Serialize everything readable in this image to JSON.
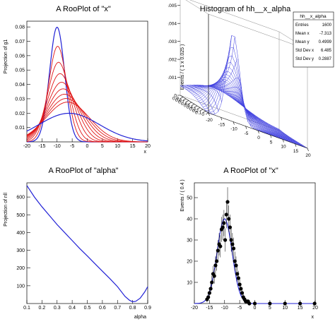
{
  "pads": [
    {
      "title": "A RooPlot of \"x\"",
      "xlabel": "x",
      "ylabel": "Projection of g1"
    },
    {
      "title": "Histogram of hh__x_alpha",
      "zlabel": "Events / ( 1 x 0.025 )"
    },
    {
      "title": "A RooPlot of \"alpha\"",
      "xlabel": "alpha",
      "ylabel": "Projection of nll"
    },
    {
      "title": "A RooPlot of \"x\"",
      "xlabel": "x",
      "ylabel": "Events / ( 0.4 )"
    }
  ],
  "stats": {
    "title": "hh__x_alpha",
    "rows": [
      {
        "label": "Entries",
        "value": "1600"
      },
      {
        "label": "Mean x",
        "value": "-7.313"
      },
      {
        "label": "Mean y",
        "value": "0.4999"
      },
      {
        "label": "Std Dev x",
        "value": "6.485"
      },
      {
        "label": "Std Dev y",
        "value": "0.2887"
      }
    ]
  },
  "chart_data": [
    {
      "type": "line",
      "title": "A RooPlot of \"x\"",
      "xlabel": "x",
      "ylabel": "Projection of g1",
      "xlim": [
        -20,
        20
      ],
      "ylim": [
        0,
        0.084
      ],
      "xticks": [
        -20,
        -15,
        -10,
        -5,
        0,
        5,
        10,
        15,
        20
      ],
      "yticks": [
        0.01,
        0.02,
        0.03,
        0.04,
        0.05,
        0.06,
        0.07,
        0.08
      ],
      "colors": {
        "blue": "#2121d6",
        "red": "#e01414"
      },
      "series": [
        {
          "color": "blue",
          "mean": -10,
          "sigma": 2.5,
          "scale": 0.0798
        },
        {
          "color": "red",
          "mean": -9.8,
          "sigma": 3.0,
          "scale": 0.0665
        },
        {
          "color": "red",
          "mean": -9.5,
          "sigma": 3.6,
          "scale": 0.0554
        },
        {
          "color": "red",
          "mean": -9.0,
          "sigma": 4.2,
          "scale": 0.0475
        },
        {
          "color": "red",
          "mean": -8.5,
          "sigma": 4.8,
          "scale": 0.0415
        },
        {
          "color": "red",
          "mean": -8.0,
          "sigma": 5.4,
          "scale": 0.0369
        },
        {
          "color": "red",
          "mean": -7.5,
          "sigma": 6.0,
          "scale": 0.0332
        },
        {
          "color": "red",
          "mean": -7.0,
          "sigma": 6.6,
          "scale": 0.0302
        },
        {
          "color": "red",
          "mean": -6.5,
          "sigma": 7.2,
          "scale": 0.0277
        },
        {
          "color": "blue",
          "mean": -6.0,
          "sigma": 10.0,
          "scale": 0.0199
        }
      ]
    },
    {
      "type": "surface",
      "title": "Histogram of hh__x_alpha",
      "xticks": [
        -20,
        -15,
        -10,
        -5,
        0,
        5,
        10,
        15,
        20
      ],
      "yticks": [
        0,
        0.1,
        0.2,
        0.3,
        0.4,
        0.5,
        0.6,
        0.7,
        0.8,
        0.9
      ],
      "zticks": [
        0,
        0.001,
        0.002,
        0.003,
        0.004,
        0.005
      ],
      "zlabel": "Events / ( 1 x 0.025 )",
      "color": "#4040e0"
    },
    {
      "type": "line",
      "title": "A RooPlot of \"alpha\"",
      "xlabel": "alpha",
      "ylabel": "Projection of nll",
      "xlim": [
        0.1,
        0.9
      ],
      "ylim": [
        0,
        680
      ],
      "xticks": [
        0.1,
        0.2,
        0.3,
        0.4,
        0.5,
        0.6,
        0.7,
        0.8,
        0.9
      ],
      "yticks": [
        100,
        200,
        300,
        400,
        500,
        600
      ],
      "color": "#2121d6",
      "x": [
        0.1,
        0.15,
        0.2,
        0.25,
        0.3,
        0.35,
        0.4,
        0.45,
        0.5,
        0.55,
        0.6,
        0.65,
        0.7,
        0.75,
        0.78,
        0.8,
        0.82,
        0.85,
        0.88,
        0.9
      ],
      "y": [
        665,
        600,
        545,
        495,
        445,
        400,
        355,
        310,
        268,
        225,
        182,
        140,
        95,
        40,
        18,
        10,
        12,
        30,
        65,
        95
      ]
    },
    {
      "type": "scatter",
      "title": "A RooPlot of \"x\"",
      "xlabel": "x",
      "ylabel": "Events / ( 0.4 )",
      "xlim": [
        -20,
        20
      ],
      "ylim": [
        0,
        57
      ],
      "xticks": [
        -20,
        -15,
        -10,
        -5,
        0,
        5,
        10,
        15,
        20
      ],
      "yticks": [
        10,
        20,
        30,
        40,
        50
      ],
      "curve": {
        "mean": -10,
        "sigma": 2.5,
        "scale": 40
      },
      "points": [
        {
          "x": -15.8,
          "y": 2
        },
        {
          "x": -15.4,
          "y": 3
        },
        {
          "x": -15.0,
          "y": 5
        },
        {
          "x": -14.6,
          "y": 7
        },
        {
          "x": -14.2,
          "y": 10
        },
        {
          "x": -13.8,
          "y": 14
        },
        {
          "x": -13.4,
          "y": 13
        },
        {
          "x": -13.0,
          "y": 18
        },
        {
          "x": -12.6,
          "y": 20
        },
        {
          "x": -12.2,
          "y": 25
        },
        {
          "x": -11.8,
          "y": 28
        },
        {
          "x": -11.4,
          "y": 27
        },
        {
          "x": -11.0,
          "y": 35
        },
        {
          "x": -10.6,
          "y": 36
        },
        {
          "x": -10.2,
          "y": 38
        },
        {
          "x": -9.8,
          "y": 30
        },
        {
          "x": -9.4,
          "y": 42
        },
        {
          "x": -9.0,
          "y": 48
        },
        {
          "x": -8.6,
          "y": 40
        },
        {
          "x": -8.2,
          "y": 36
        },
        {
          "x": -7.8,
          "y": 30
        },
        {
          "x": -7.4,
          "y": 28
        },
        {
          "x": -7.0,
          "y": 26
        },
        {
          "x": -6.6,
          "y": 20
        },
        {
          "x": -6.2,
          "y": 18
        },
        {
          "x": -5.8,
          "y": 14
        },
        {
          "x": -5.4,
          "y": 12
        },
        {
          "x": -5.0,
          "y": 9
        },
        {
          "x": -4.6,
          "y": 7
        },
        {
          "x": -4.2,
          "y": 5
        },
        {
          "x": -3.8,
          "y": 3
        },
        {
          "x": -3.4,
          "y": 2
        },
        {
          "x": -3.0,
          "y": 1
        },
        {
          "x": -2.6,
          "y": 1
        },
        {
          "x": -2.2,
          "y": 1
        },
        {
          "x": -1.8,
          "y": 0
        },
        {
          "x": 0,
          "y": 0
        },
        {
          "x": 5,
          "y": 0
        },
        {
          "x": 10,
          "y": 0
        },
        {
          "x": 15,
          "y": 0
        },
        {
          "x": 19.8,
          "y": 0
        }
      ]
    }
  ]
}
